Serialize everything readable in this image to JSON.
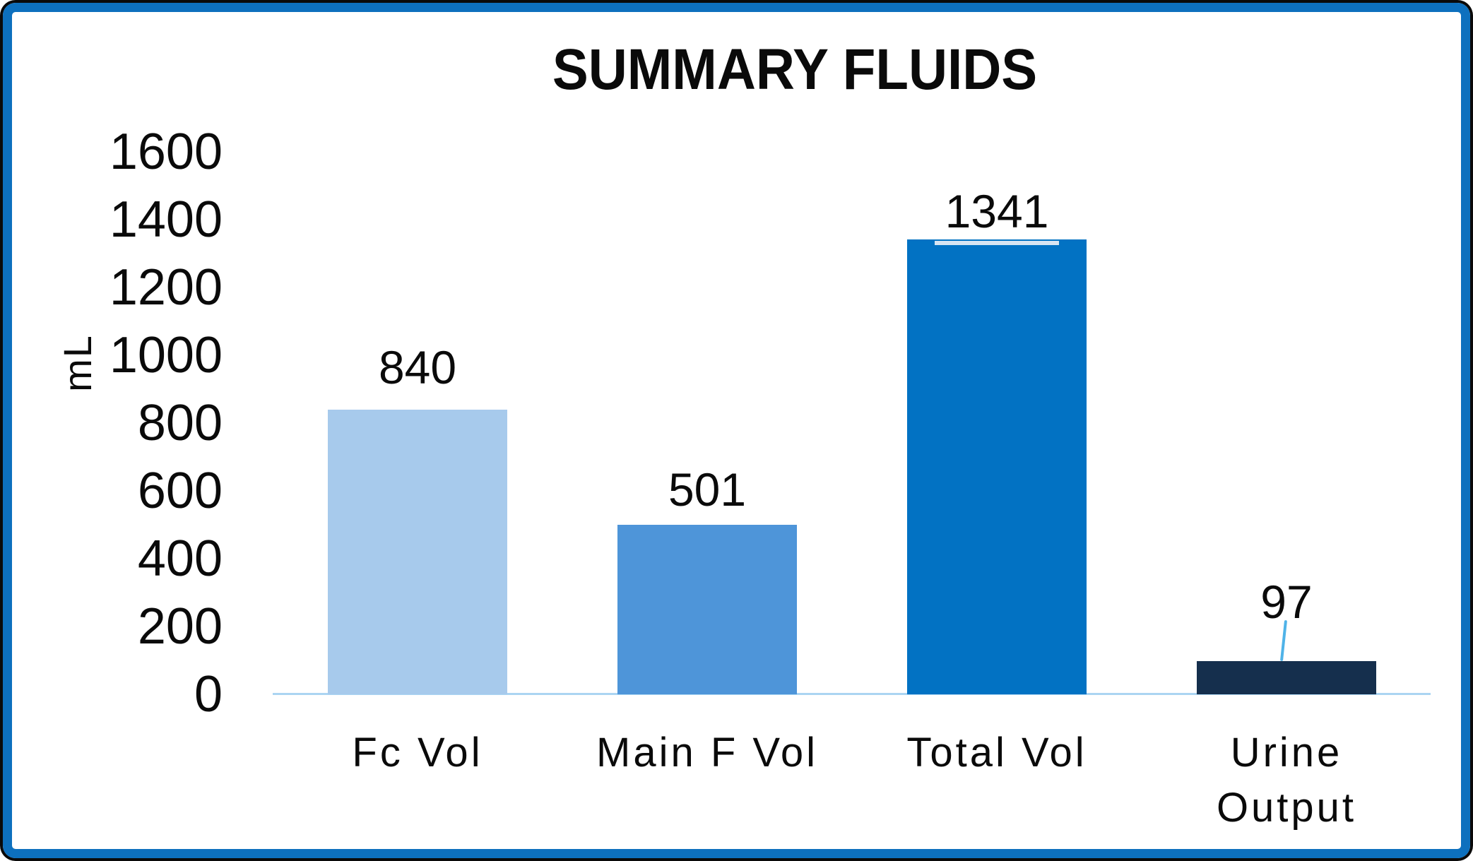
{
  "chart_data": {
    "type": "bar",
    "title": "SUMMARY FLUIDS",
    "xlabel": "",
    "ylabel": "mL",
    "categories": [
      "Fc Vol",
      "Main F Vol",
      "Total Vol",
      "Urine Output"
    ],
    "values": [
      840,
      501,
      1341,
      97
    ],
    "value_labels": [
      "840",
      "501",
      "1341",
      "97"
    ],
    "bar_colors": [
      "#a7caec",
      "#4e95d9",
      "#0272c3",
      "#152f4d"
    ],
    "yticks": [
      "1600",
      "1400",
      "1200",
      "1000",
      "800",
      "600",
      "400",
      "200",
      "0"
    ],
    "ylim": [
      0,
      1600
    ],
    "grid": false,
    "legend": false,
    "annotations": [
      {
        "target": "Urine Output",
        "type": "leader-line",
        "note": "value label connected to bar by short line"
      },
      {
        "target": "Total Vol",
        "type": "top-highlight-strip",
        "note": "pale inset strip at top of bar"
      }
    ]
  },
  "style_colors": {
    "frame_border": "#0d70be",
    "frame_outer_edge": "#0a0a0a",
    "axis_baseline": "#abd5f2",
    "leader_line": "#4fb3e8",
    "total_bar_highlight": "#d7e4f2",
    "text": "#0a0a0a",
    "background": "#ffffff"
  }
}
